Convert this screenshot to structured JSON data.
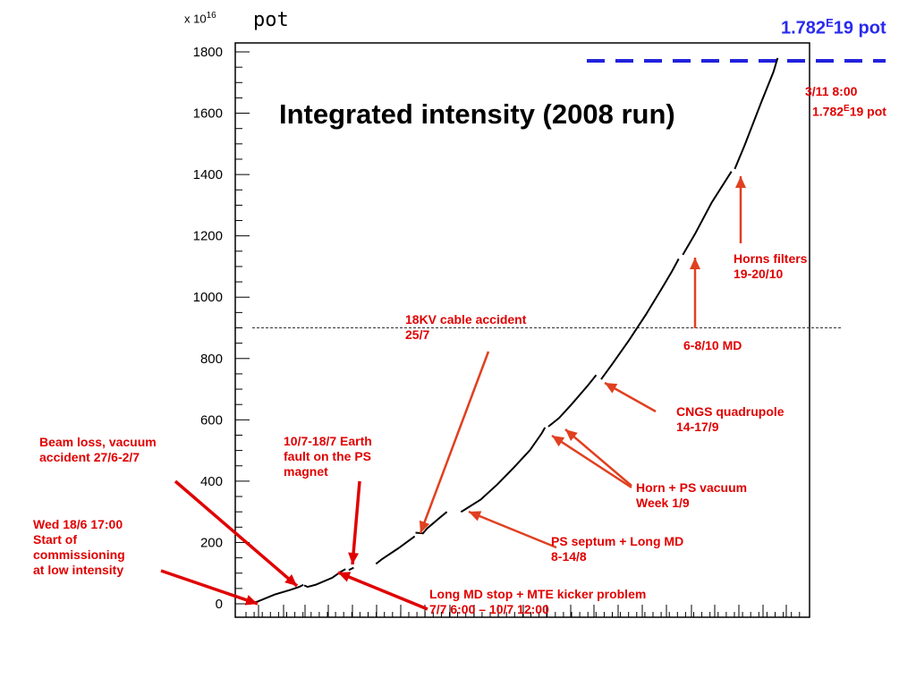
{
  "chart_data": {
    "type": "line",
    "title": "Integrated intensity (2008 run)",
    "ylabel_unit": "pot",
    "y_multiplier": "x 10",
    "y_multiplier_exp": "16",
    "yticks": [
      0,
      200,
      400,
      600,
      800,
      1000,
      1200,
      1400,
      1600,
      1800
    ],
    "ylim": [
      -10,
      1815
    ],
    "grid": false,
    "reference_line_y": 900,
    "total_label_main": "1.782",
    "total_label_exp": "E",
    "total_label_rest": "19 pot",
    "final_date": "3/11 8:00",
    "final_total_main": "1.782",
    "final_total_exp": "E",
    "final_total_rest": "19 pot",
    "segments": [
      [
        [
          1,
          0
        ],
        [
          2,
          8
        ],
        [
          4,
          30
        ],
        [
          6,
          46
        ],
        [
          7,
          55
        ],
        [
          7.5,
          62
        ]
      ],
      [
        [
          7.6,
          60
        ],
        [
          8,
          55
        ],
        [
          9,
          62
        ],
        [
          11,
          85
        ],
        [
          12,
          104
        ],
        [
          12.6,
          113
        ]
      ],
      [
        [
          13,
          110
        ],
        [
          13.6,
          118
        ]
      ],
      [
        [
          16.3,
          130
        ],
        [
          17,
          145
        ],
        [
          19,
          181
        ],
        [
          21,
          220
        ]
      ],
      [
        [
          21.1,
          232
        ],
        [
          22,
          230
        ],
        [
          22.5,
          246
        ],
        [
          24,
          280
        ],
        [
          24.9,
          300
        ]
      ],
      [
        [
          26.6,
          300
        ],
        [
          27,
          306
        ],
        [
          29,
          340
        ],
        [
          31,
          389
        ],
        [
          33,
          444
        ],
        [
          35,
          502
        ],
        [
          36.4,
          556
        ],
        [
          36.8,
          575
        ]
      ],
      [
        [
          37.2,
          578
        ],
        [
          38,
          595
        ],
        [
          38.5,
          606
        ],
        [
          40,
          650
        ],
        [
          42,
          712
        ],
        [
          43,
          746
        ]
      ],
      [
        [
          43.6,
          732
        ],
        [
          45,
          784
        ],
        [
          47,
          860
        ],
        [
          49,
          942
        ],
        [
          51,
          1030
        ],
        [
          52.2,
          1085
        ],
        [
          53,
          1125
        ]
      ],
      [
        [
          53.5,
          1138
        ],
        [
          55,
          1207
        ],
        [
          57,
          1308
        ],
        [
          59.4,
          1410
        ]
      ],
      [
        [
          59.8,
          1418
        ],
        [
          61,
          1495
        ],
        [
          63,
          1635
        ],
        [
          64.5,
          1735
        ],
        [
          65,
          1780
        ]
      ]
    ]
  },
  "annotations": {
    "cable_accident": [
      "18KV cable accident",
      "25/7"
    ],
    "md_6_8_10": "6-8/10 MD",
    "horns_filters": [
      "Horns filters",
      "19-20/10"
    ],
    "cngs_quad": [
      "CNGS quadrupole",
      "14-17/9"
    ],
    "horn_ps_vacuum": [
      "Horn + PS vacuum",
      "Week 1/9"
    ],
    "ps_septum": [
      "PS septum + Long MD",
      "8-14/8"
    ],
    "long_md_stop": [
      "Long MD stop + MTE kicker problem",
      "7/7 6:00 – 10/7 12:00"
    ],
    "earth_fault": [
      "10/7-18/7 Earth",
      "fault on the PS",
      "magnet"
    ],
    "beam_loss": [
      "Beam loss, vacuum",
      "accident 27/6-2/7"
    ],
    "start_commissioning": [
      "Wed 18/6 17:00",
      "Start of",
      "commissioning",
      "at low intensity"
    ]
  }
}
